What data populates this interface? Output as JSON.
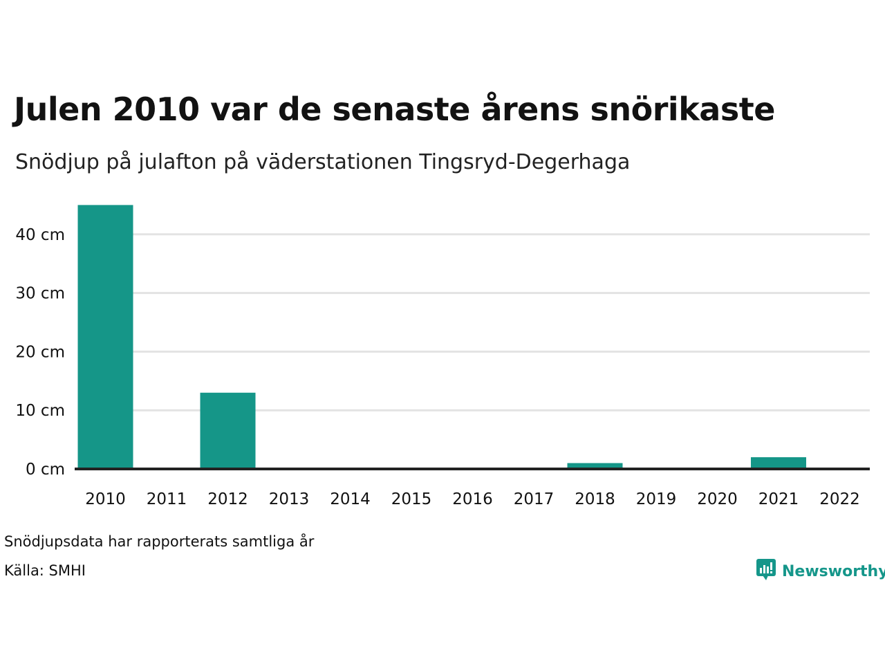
{
  "header": {
    "title": "Julen 2010 var de senaste årens snörikaste",
    "subtitle": "Snödjup på julafton på väderstationen Tingsryd-Degerhaga"
  },
  "footer": {
    "note": "Snödjupsdata har rapporterats samtliga år",
    "source": "Källa: SMHI",
    "brand": "Newsworthy",
    "brand_icon": "newsworthy-logo-icon"
  },
  "colors": {
    "bar": "#159688",
    "grid": "#e3e3e3",
    "baseline": "#222222",
    "brand": "#15968a"
  },
  "chart_data": {
    "type": "bar",
    "title": "Julen 2010 var de senaste årens snörikaste",
    "subtitle": "Snödjup på julafton på väderstationen Tingsryd-Degerhaga",
    "categories": [
      "2010",
      "2011",
      "2012",
      "2013",
      "2014",
      "2015",
      "2016",
      "2017",
      "2018",
      "2019",
      "2020",
      "2021",
      "2022"
    ],
    "values": [
      45,
      0,
      13,
      0,
      0,
      0,
      0,
      0,
      1,
      0,
      0,
      2,
      0
    ],
    "unit": "cm",
    "ylim": [
      0,
      45
    ],
    "yticks": [
      0,
      10,
      20,
      30,
      40
    ],
    "ytick_labels": [
      "0 cm",
      "10 cm",
      "20 cm",
      "30 cm",
      "40 cm"
    ],
    "grid": true,
    "legend": "none"
  }
}
